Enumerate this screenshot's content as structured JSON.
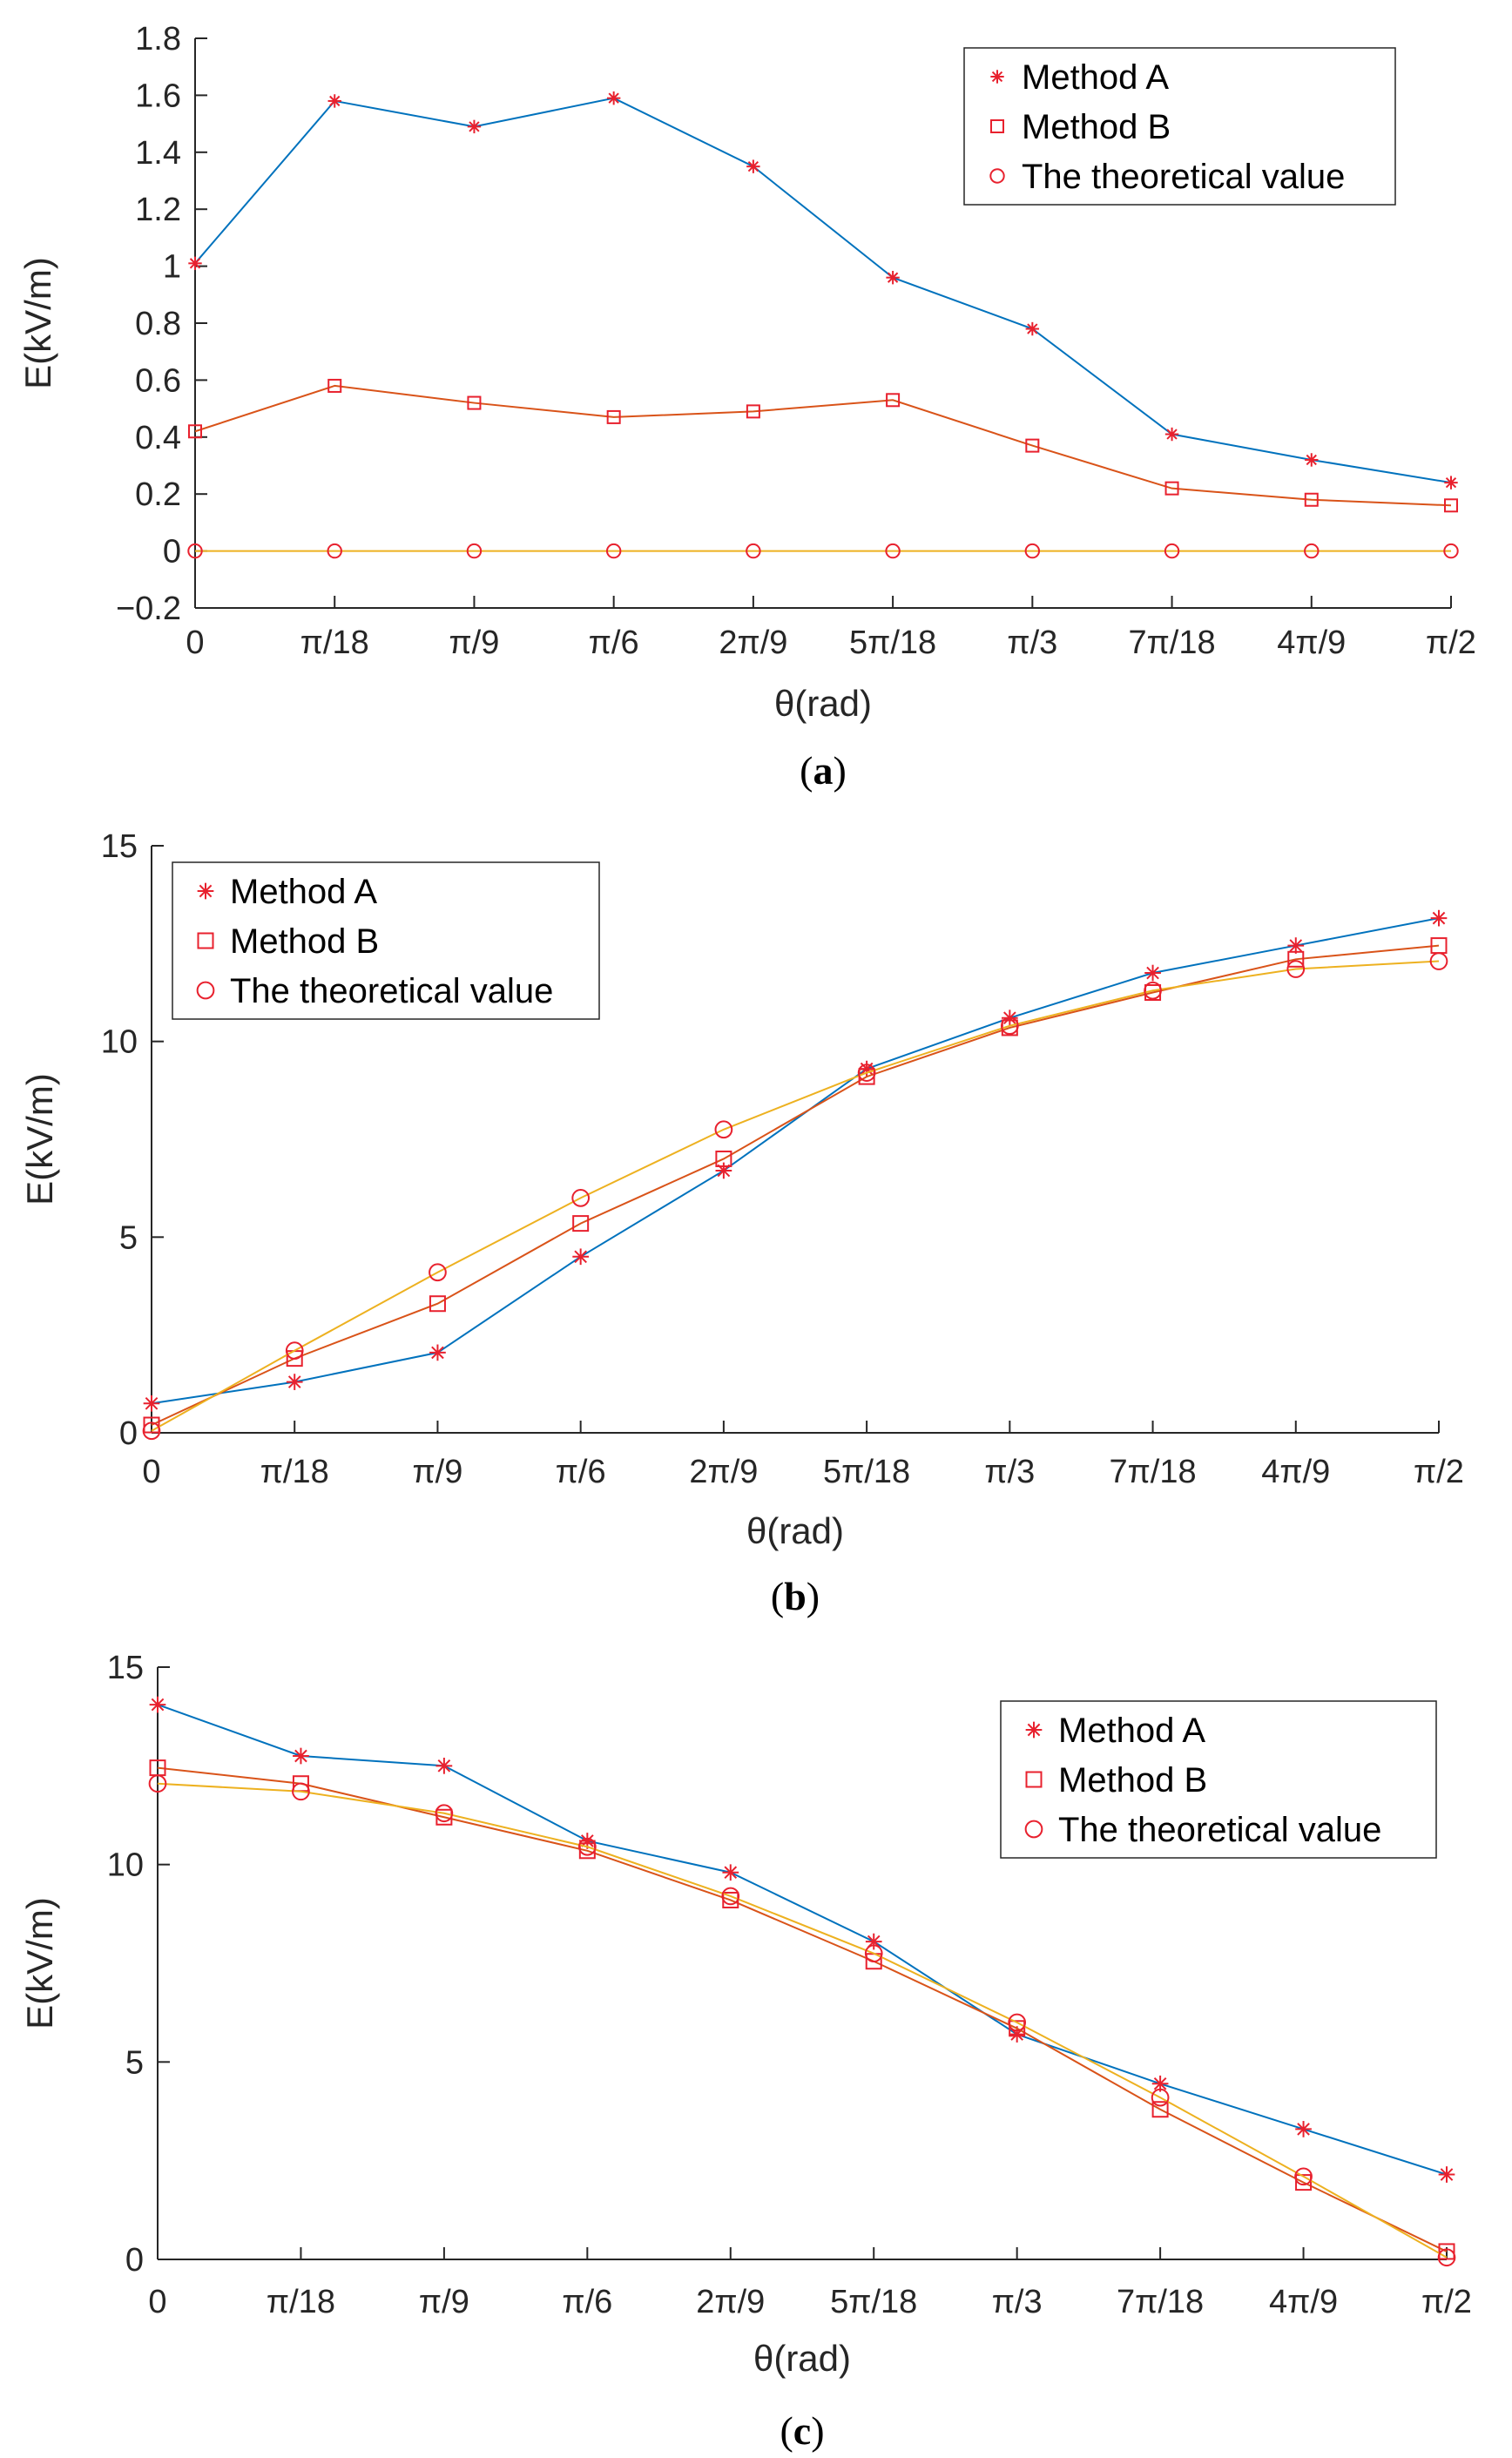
{
  "colors": {
    "method_a": "#0072BD",
    "method_b": "#D95319",
    "theoretical": "#EDB120",
    "marker": "#E8212E",
    "axis": "#262626"
  },
  "chart_data": [
    {
      "type": "line",
      "panel": "(a)",
      "caption": {
        "open": "(",
        "letter": "a",
        "close": ")"
      },
      "xlabel": "θ(rad)",
      "ylabel": "E(kV/m)",
      "categories": [
        "0",
        "π/18",
        "π/9",
        "π/6",
        "2π/9",
        "5π/18",
        "π/3",
        "7π/18",
        "4π/9",
        "π/2"
      ],
      "ylim": [
        -0.2,
        1.8
      ],
      "yticks": [
        -0.2,
        0,
        0.2,
        0.4,
        0.6,
        0.8,
        1,
        1.2,
        1.4,
        1.6,
        1.8
      ],
      "ytick_labels": [
        "−0.2",
        "0",
        "0.2",
        "0.4",
        "0.6",
        "0.8",
        "1",
        "1.2",
        "1.4",
        "1.6",
        "1.8"
      ],
      "legend_position": "top-right",
      "series": [
        {
          "name": "Method A",
          "marker": "star",
          "values": [
            1.01,
            1.58,
            1.49,
            1.59,
            1.35,
            0.96,
            0.78,
            0.41,
            0.32,
            0.24
          ]
        },
        {
          "name": "Method B",
          "marker": "square",
          "values": [
            0.42,
            0.58,
            0.52,
            0.47,
            0.49,
            0.53,
            0.37,
            0.22,
            0.18,
            0.16
          ]
        },
        {
          "name": "The theoretical value",
          "marker": "circle",
          "values": [
            0,
            0,
            0,
            0,
            0,
            0,
            0,
            0,
            0,
            0
          ]
        }
      ]
    },
    {
      "type": "line",
      "panel": "(b)",
      "caption": {
        "open": "(",
        "letter": "b",
        "close": ")"
      },
      "xlabel": "θ(rad)",
      "ylabel": "E(kV/m)",
      "categories": [
        "0",
        "π/18",
        "π/9",
        "π/6",
        "2π/9",
        "5π/18",
        "π/3",
        "7π/18",
        "4π/9",
        "π/2"
      ],
      "ylim": [
        0,
        15
      ],
      "yticks": [
        0,
        5,
        10,
        15
      ],
      "ytick_labels": [
        "0",
        "5",
        "10",
        "15"
      ],
      "legend_position": "top-left",
      "series": [
        {
          "name": "Method A",
          "marker": "star",
          "values": [
            0.75,
            1.3,
            2.05,
            4.5,
            6.7,
            9.3,
            10.6,
            11.75,
            12.45,
            13.15
          ]
        },
        {
          "name": "Method B",
          "marker": "square",
          "values": [
            0.2,
            1.9,
            3.3,
            5.35,
            7.0,
            9.1,
            10.35,
            11.25,
            12.1,
            12.45
          ]
        },
        {
          "name": "The theoretical value",
          "marker": "circle",
          "values": [
            0.05,
            2.1,
            4.1,
            6.0,
            7.75,
            9.2,
            10.4,
            11.3,
            11.85,
            12.05
          ]
        }
      ]
    },
    {
      "type": "line",
      "panel": "(c)",
      "caption": {
        "open": "(",
        "letter": "c",
        "close": ")"
      },
      "xlabel": "θ(rad)",
      "ylabel": "E(kV/m)",
      "categories": [
        "0",
        "π/18",
        "π/9",
        "π/6",
        "2π/9",
        "5π/18",
        "π/3",
        "7π/18",
        "4π/9",
        "π/2"
      ],
      "ylim": [
        0,
        15
      ],
      "yticks": [
        0,
        5,
        10,
        15
      ],
      "ytick_labels": [
        "0",
        "5",
        "10",
        "15"
      ],
      "legend_position": "top-right",
      "series": [
        {
          "name": "Method A",
          "marker": "star",
          "values": [
            14.05,
            12.75,
            12.5,
            10.6,
            9.8,
            8.05,
            5.7,
            4.45,
            3.3,
            2.15
          ]
        },
        {
          "name": "Method B",
          "marker": "square",
          "values": [
            12.45,
            12.05,
            11.2,
            10.35,
            9.1,
            7.55,
            5.85,
            3.8,
            1.95,
            0.2
          ]
        },
        {
          "name": "The theoretical value",
          "marker": "circle",
          "values": [
            12.05,
            11.85,
            11.3,
            10.45,
            9.2,
            7.75,
            6.0,
            4.1,
            2.1,
            0.05
          ]
        }
      ]
    }
  ]
}
